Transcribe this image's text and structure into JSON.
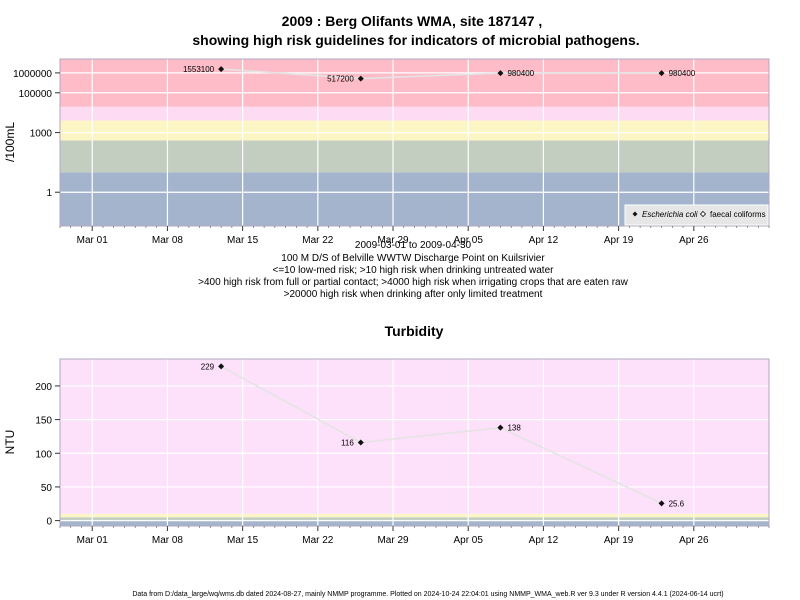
{
  "chart_data": [
    {
      "type": "scatter",
      "title_line1": "2009 : Berg Olifants WMA, site 187147 ,",
      "title_line2": "showing high risk guidelines for indicators of microbial pathogens.",
      "ylabel": "/100mL",
      "y_scale": "log",
      "y_ticks": [
        {
          "value": 1,
          "label": "1"
        },
        {
          "value": 1000,
          "label": "1000"
        },
        {
          "value": 100000,
          "label": "100000"
        },
        {
          "value": 1000000,
          "label": "1000000"
        }
      ],
      "ylim": [
        0.02,
        5000000
      ],
      "risk_bands": [
        {
          "from": 0.02,
          "to": 10,
          "color": "#a3b4cc"
        },
        {
          "from": 10,
          "to": 400,
          "color": "#c4cec0"
        },
        {
          "from": 400,
          "to": 4000,
          "color": "#fbf6c4"
        },
        {
          "from": 4000,
          "to": 20000,
          "color": "#fddcf3"
        },
        {
          "from": 20000,
          "to": 5000000,
          "color": "#fdbcc7"
        }
      ],
      "series": [
        {
          "name": "Escherichia coli",
          "marker": "filled-diamond",
          "points": [
            {
              "x": "2009-03-13",
              "y": 1553100,
              "label": "1553100"
            },
            {
              "x": "2009-03-26",
              "y": 517200,
              "label": "517200"
            },
            {
              "x": "2009-04-08",
              "y": 980400,
              "label": "980400"
            },
            {
              "x": "2009-04-23",
              "y": 980400,
              "label": "980400"
            }
          ]
        },
        {
          "name": "faecal coliforms",
          "marker": "open-diamond",
          "points": []
        }
      ],
      "legend_position": "bottom-right",
      "subtitle_lines": [
        "2009-03-01 to 2009-04-30",
        "100 M D/S of Belville WWTW Discharge Point on Kuilsrivier",
        "<=10 low-med risk; >10 high risk when drinking untreated water",
        ">400 high risk from full or partial contact; >4000 high risk when irrigating crops that are eaten raw",
        ">20000 high risk when drinking after only limited treatment"
      ]
    },
    {
      "type": "scatter",
      "title": "Turbidity",
      "ylabel": "NTU",
      "ylim": [
        -8,
        240
      ],
      "y_ticks": [
        0,
        50,
        100,
        150,
        200
      ],
      "risk_bands": [
        {
          "from": -8,
          "to": 1,
          "color": "#a3b4cc"
        },
        {
          "from": 1,
          "to": 5,
          "color": "#c4cec0"
        },
        {
          "from": 5,
          "to": 10,
          "color": "#fbf6c4"
        },
        {
          "from": 10,
          "to": 240,
          "color": "#fde0fa"
        }
      ],
      "series": [
        {
          "name": "Turbidity",
          "marker": "filled-diamond",
          "points": [
            {
              "x": "2009-03-13",
              "y": 229,
              "label": "229"
            },
            {
              "x": "2009-03-26",
              "y": 116,
              "label": "116"
            },
            {
              "x": "2009-04-08",
              "y": 138,
              "label": "138"
            },
            {
              "x": "2009-04-23",
              "y": 25.6,
              "label": "25.6"
            }
          ]
        }
      ]
    }
  ],
  "x_axis": {
    "xlim": [
      "2009-02-26",
      "2009-05-03"
    ],
    "ticks": [
      {
        "date": "2009-03-01",
        "label": "Mar 01"
      },
      {
        "date": "2009-03-08",
        "label": "Mar 08"
      },
      {
        "date": "2009-03-15",
        "label": "Mar 15"
      },
      {
        "date": "2009-03-22",
        "label": "Mar 22"
      },
      {
        "date": "2009-03-29",
        "label": "Mar 29"
      },
      {
        "date": "2009-04-05",
        "label": "Apr 05"
      },
      {
        "date": "2009-04-12",
        "label": "Apr 12"
      },
      {
        "date": "2009-04-19",
        "label": "Apr 19"
      },
      {
        "date": "2009-04-26",
        "label": "Apr 26"
      }
    ]
  },
  "footer": "Data from D:/data_large/wq/wms.db dated 2024-08-27, mainly NMMP programme. Plotted on 2024-10-24 22:04:01 using NMMP_WMA_web.R ver 9.3 under R version 4.4.1 (2024-06-14 ucrt)"
}
